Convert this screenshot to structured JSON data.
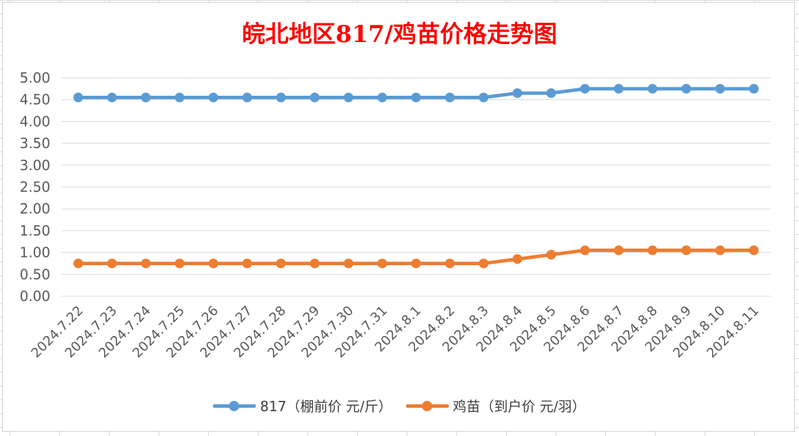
{
  "chart_data": {
    "type": "line",
    "title": "皖北地区817/鸡苗价格走势图",
    "categories": [
      "2024.7.22",
      "2024.7.23",
      "2024.7.24",
      "2024.7.25",
      "2024.7.26",
      "2024.7.27",
      "2024.7.28",
      "2024.7.29",
      "2024.7.30",
      "2024.7.31",
      "2024.8.1",
      "2024.8.2",
      "2024.8.3",
      "2024.8.4",
      "2024.8.5",
      "2024.8.6",
      "2024.8.7",
      "2024.8.8",
      "2024.8.9",
      "2024.8.10",
      "2024.8.11"
    ],
    "series": [
      {
        "name": "817（棚前价 元/斤）",
        "color": "#5b9bd5",
        "values": [
          4.55,
          4.55,
          4.55,
          4.55,
          4.55,
          4.55,
          4.55,
          4.55,
          4.55,
          4.55,
          4.55,
          4.55,
          4.55,
          4.65,
          4.65,
          4.75,
          4.75,
          4.75,
          4.75,
          4.75,
          4.75
        ]
      },
      {
        "name": "鸡苗（到户价 元/羽）",
        "color": "#ed7d31",
        "values": [
          0.75,
          0.75,
          0.75,
          0.75,
          0.75,
          0.75,
          0.75,
          0.75,
          0.75,
          0.75,
          0.75,
          0.75,
          0.75,
          0.85,
          0.95,
          1.05,
          1.05,
          1.05,
          1.05,
          1.05,
          1.05
        ]
      }
    ],
    "yticks": [
      "0.00",
      "0.50",
      "1.00",
      "1.50",
      "2.00",
      "2.50",
      "3.00",
      "3.50",
      "4.00",
      "4.50",
      "5.00"
    ],
    "ylim": [
      0,
      5
    ],
    "grid": true,
    "legend": "bottom"
  }
}
